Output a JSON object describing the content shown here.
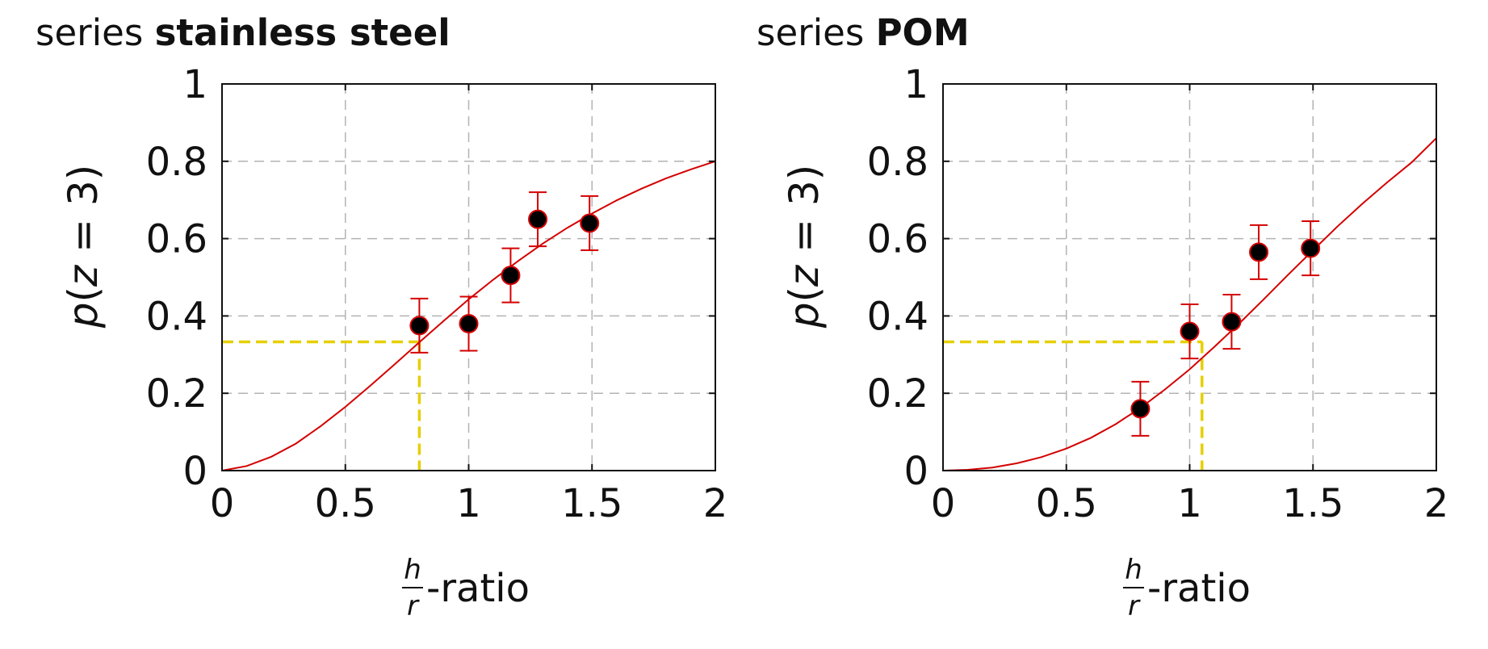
{
  "chart_data": [
    {
      "type": "scatter",
      "title_prefix": "series",
      "title_bold": "stainless steel",
      "xlabel_num": "h",
      "xlabel_den": "r",
      "xlabel_suffix": "-ratio",
      "ylabel_func": "p",
      "ylabel_var": "z",
      "ylabel_rest": " = 3)",
      "xlim": [
        0,
        2
      ],
      "ylim": [
        0,
        1
      ],
      "xticks": [
        0,
        0.5,
        1,
        1.5,
        2
      ],
      "xtick_labels": [
        "0",
        "0.5",
        "1",
        "1.5",
        "2"
      ],
      "yticks": [
        0,
        0.2,
        0.4,
        0.6,
        0.8,
        1
      ],
      "ytick_labels": [
        "0",
        "0.2",
        "0.4",
        "0.6",
        "0.8",
        "1"
      ],
      "grid": true,
      "points": [
        {
          "x": 0.8,
          "y": 0.375,
          "err": 0.07
        },
        {
          "x": 1.0,
          "y": 0.38,
          "err": 0.07
        },
        {
          "x": 1.17,
          "y": 0.505,
          "err": 0.07
        },
        {
          "x": 1.28,
          "y": 0.65,
          "err": 0.07
        },
        {
          "x": 1.49,
          "y": 0.64,
          "err": 0.07
        }
      ],
      "fit_curve": {
        "x": [
          0,
          0.1,
          0.2,
          0.3,
          0.4,
          0.5,
          0.6,
          0.7,
          0.8,
          0.9,
          1.0,
          1.1,
          1.2,
          1.3,
          1.4,
          1.5,
          1.6,
          1.7,
          1.8,
          1.9,
          2.0
        ],
        "y": [
          0,
          0.012,
          0.036,
          0.07,
          0.115,
          0.165,
          0.219,
          0.275,
          0.332,
          0.388,
          0.443,
          0.494,
          0.542,
          0.587,
          0.628,
          0.665,
          0.699,
          0.729,
          0.756,
          0.779,
          0.8
        ]
      },
      "reference": {
        "x": 0.8,
        "y": 0.333
      },
      "colors": {
        "curve": "#d40000",
        "marker": "#000000",
        "marker_edge": "#d40000",
        "errorbar": "#d40000",
        "reference": "#e6cf00",
        "grid": "#b3b3b3"
      }
    },
    {
      "type": "scatter",
      "title_prefix": "series",
      "title_bold": "POM",
      "xlabel_num": "h",
      "xlabel_den": "r",
      "xlabel_suffix": "-ratio",
      "ylabel_func": "p",
      "ylabel_var": "z",
      "ylabel_rest": " = 3)",
      "xlim": [
        0,
        2
      ],
      "ylim": [
        0,
        1
      ],
      "xticks": [
        0,
        0.5,
        1,
        1.5,
        2
      ],
      "xtick_labels": [
        "0",
        "0.5",
        "1",
        "1.5",
        "2"
      ],
      "yticks": [
        0,
        0.2,
        0.4,
        0.6,
        0.8,
        1
      ],
      "ytick_labels": [
        "0",
        "0.2",
        "0.4",
        "0.6",
        "0.8",
        "1"
      ],
      "grid": true,
      "points": [
        {
          "x": 0.8,
          "y": 0.16,
          "err": 0.07
        },
        {
          "x": 1.0,
          "y": 0.36,
          "err": 0.07
        },
        {
          "x": 1.17,
          "y": 0.385,
          "err": 0.07
        },
        {
          "x": 1.28,
          "y": 0.565,
          "err": 0.07
        },
        {
          "x": 1.49,
          "y": 0.575,
          "err": 0.07
        }
      ],
      "fit_curve": {
        "x": [
          0,
          0.1,
          0.2,
          0.3,
          0.4,
          0.5,
          0.6,
          0.7,
          0.8,
          0.9,
          1.0,
          1.1,
          1.2,
          1.3,
          1.4,
          1.5,
          1.6,
          1.7,
          1.8,
          1.9,
          2.0
        ],
        "y": [
          0,
          0.002,
          0.008,
          0.019,
          0.035,
          0.057,
          0.085,
          0.12,
          0.162,
          0.21,
          0.262,
          0.32,
          0.38,
          0.443,
          0.507,
          0.57,
          0.632,
          0.69,
          0.745,
          0.797,
          0.86
        ]
      },
      "reference": {
        "x": 1.05,
        "y": 0.333
      },
      "colors": {
        "curve": "#d40000",
        "marker": "#000000",
        "marker_edge": "#d40000",
        "errorbar": "#d40000",
        "reference": "#e6cf00",
        "grid": "#b3b3b3"
      }
    }
  ]
}
